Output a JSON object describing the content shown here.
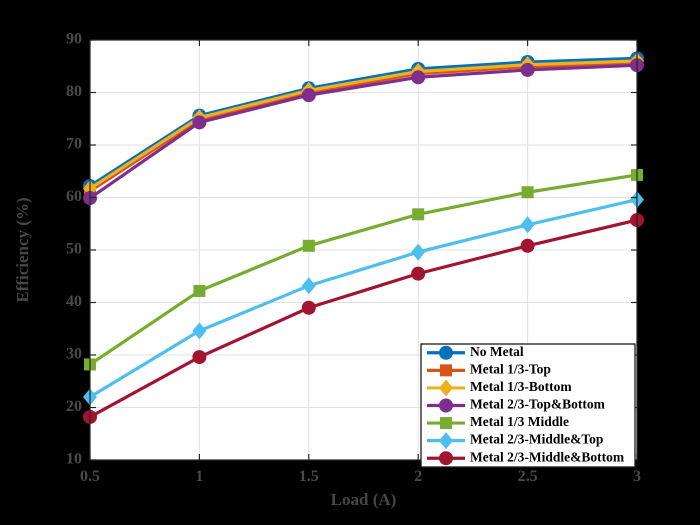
{
  "figure": {
    "background_color": "#000000",
    "plot_background_color": "#ffffff",
    "grid_color": "#e2e2e2",
    "axis_box_color": "#262626",
    "tick_label_color": "#4a4a4a",
    "axis_label_color": "#464646",
    "legend_background_color": "#ffffff",
    "legend_border_color": "#1a1a1a",
    "legend_text_color": "#000000"
  },
  "chart_data": {
    "type": "line",
    "title": "",
    "xlabel": "Load (A)",
    "ylabel": "Efficiency (%)",
    "grid": true,
    "legend_position": "lower-right-inside",
    "xlim": [
      0.5,
      3
    ],
    "ylim": [
      10,
      90
    ],
    "xticks": [
      0.5,
      1,
      1.5,
      2,
      2.5,
      3
    ],
    "xtick_labels": [
      "0.5",
      "1",
      "1.5",
      "2",
      "2.5",
      "3"
    ],
    "yticks": [
      10,
      20,
      30,
      40,
      50,
      60,
      70,
      80,
      90
    ],
    "ytick_labels": [
      "10",
      "20",
      "30",
      "40",
      "50",
      "60",
      "70",
      "80",
      "90"
    ],
    "x": [
      0.5,
      1,
      1.5,
      2,
      2.5,
      3
    ],
    "series": [
      {
        "name": "No Metal",
        "color": "#0072BD",
        "marker": "circle",
        "values": [
          62.2,
          75.6,
          80.8,
          84.5,
          85.8,
          86.5
        ]
      },
      {
        "name": "Metal 1/3-Top",
        "color": "#D95319",
        "marker": "square",
        "values": [
          61.2,
          74.8,
          79.9,
          83.6,
          84.9,
          85.6
        ]
      },
      {
        "name": "Metal 1/3-Bottom",
        "color": "#EDB120",
        "marker": "diamond",
        "values": [
          61.7,
          75.2,
          80.4,
          84.0,
          85.3,
          86.0
        ]
      },
      {
        "name": "Metal 2/3-Top&Bottom",
        "color": "#7E2F8E",
        "marker": "circle",
        "values": [
          59.9,
          74.3,
          79.5,
          82.9,
          84.3,
          85.2
        ]
      },
      {
        "name": "Metal 1/3 Middle",
        "color": "#77AC30",
        "marker": "square",
        "values": [
          28.2,
          42.2,
          50.8,
          56.8,
          61.0,
          64.3
        ]
      },
      {
        "name": "Metal 2/3-Middle&Top",
        "color": "#4DBEEE",
        "marker": "diamond",
        "values": [
          22.0,
          34.6,
          43.2,
          49.6,
          54.8,
          59.6
        ]
      },
      {
        "name": "Metal 2/3-Middle&Bottom",
        "color": "#A2142F",
        "marker": "circle",
        "values": [
          18.2,
          29.6,
          39.0,
          45.5,
          50.8,
          55.7
        ]
      }
    ]
  }
}
